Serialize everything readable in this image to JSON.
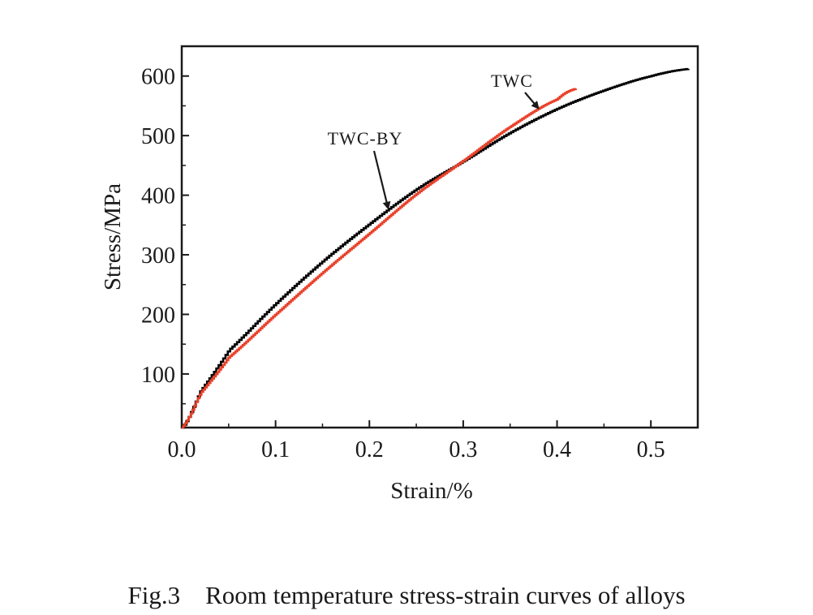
{
  "chart_data": {
    "type": "line",
    "title": "",
    "xlabel": "Strain/%",
    "ylabel": "Stress/MPa",
    "xlim": [
      0.0,
      0.55
    ],
    "ylim": [
      10,
      650
    ],
    "x_ticks": [
      0.0,
      0.1,
      0.2,
      0.3,
      0.4,
      0.5
    ],
    "x_tick_labels": [
      "0.0",
      "0.1",
      "0.2",
      "0.3",
      "0.4",
      "0.5"
    ],
    "y_ticks": [
      100,
      200,
      300,
      400,
      500,
      600
    ],
    "y_tick_labels": [
      "100",
      "200",
      "300",
      "400",
      "500",
      "600"
    ],
    "grid": false,
    "legend": "none",
    "series": [
      {
        "name": "TWC-BY",
        "color": "#000000",
        "x": [
          0.0,
          0.02,
          0.05,
          0.1,
          0.15,
          0.2,
          0.25,
          0.3,
          0.35,
          0.4,
          0.45,
          0.5,
          0.54
        ],
        "y": [
          10,
          72,
          140,
          218,
          289,
          352,
          410,
          457,
          505,
          545,
          576,
          600,
          612
        ]
      },
      {
        "name": "TWC",
        "color": "#e8412a",
        "x": [
          0.0,
          0.02,
          0.05,
          0.1,
          0.15,
          0.2,
          0.25,
          0.3,
          0.35,
          0.4,
          0.42
        ],
        "y": [
          10,
          68,
          128,
          200,
          270,
          336,
          402,
          458,
          515,
          561,
          579
        ]
      }
    ],
    "annotations": [
      {
        "text": "TWC",
        "target_series": "TWC",
        "arrow_to": [
          0.38,
          546
        ]
      },
      {
        "text": "TWC-BY",
        "target_series": "TWC-BY",
        "arrow_to": [
          0.22,
          378
        ]
      }
    ]
  },
  "caption": {
    "label": "Fig.3",
    "text": "Room temperature stress-strain curves of alloys"
  }
}
